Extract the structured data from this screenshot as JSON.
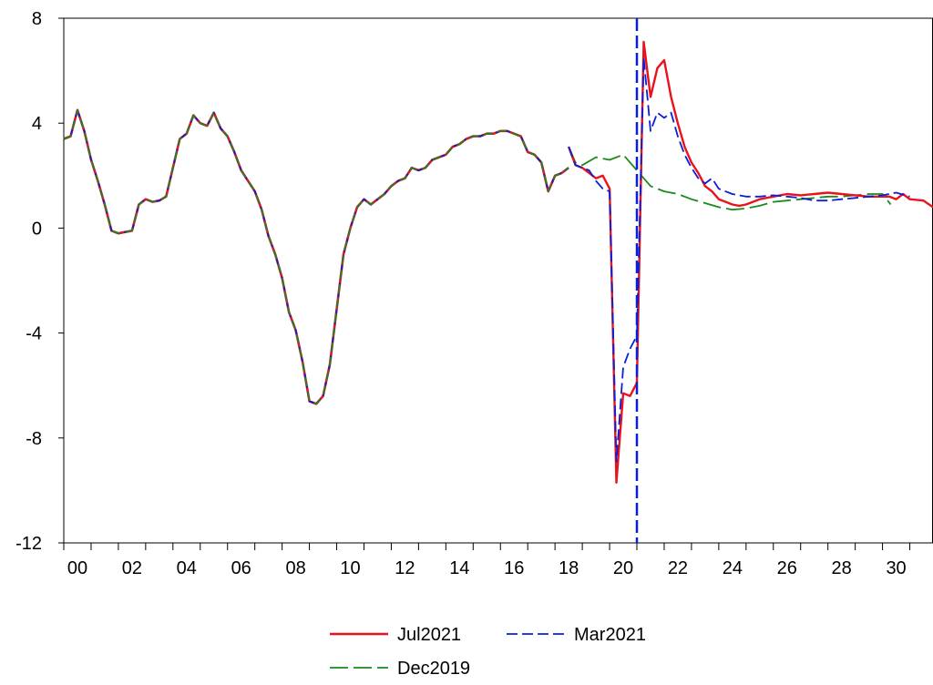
{
  "chart_data": {
    "type": "line",
    "title": "",
    "xlabel": "",
    "ylabel": "",
    "xlim": [
      2000,
      2031.85
    ],
    "ylim": [
      -12,
      8
    ],
    "y_ticks": [
      8,
      4,
      0,
      -4,
      -8,
      -12
    ],
    "x_tick_labels": [
      "00",
      "02",
      "04",
      "06",
      "08",
      "10",
      "12",
      "14",
      "16",
      "18",
      "20",
      "22",
      "24",
      "26",
      "28",
      "30"
    ],
    "x_tick_years": [
      2000,
      2002,
      2004,
      2006,
      2008,
      2010,
      2012,
      2014,
      2016,
      2018,
      2020,
      2022,
      2024,
      2026,
      2028,
      2030
    ],
    "vertical_marker_x": 2021.0,
    "legend_position": "bottom-center",
    "grid": false,
    "common_history": {
      "x": [
        2000.0,
        2000.25,
        2000.5,
        2000.75,
        2001.0,
        2001.25,
        2001.5,
        2001.75,
        2002.0,
        2002.25,
        2002.5,
        2002.75,
        2003.0,
        2003.25,
        2003.5,
        2003.75,
        2004.0,
        2004.25,
        2004.5,
        2004.75,
        2005.0,
        2005.25,
        2005.5,
        2005.75,
        2006.0,
        2006.25,
        2006.5,
        2006.75,
        2007.0,
        2007.25,
        2007.5,
        2007.75,
        2008.0,
        2008.25,
        2008.5,
        2008.75,
        2009.0,
        2009.25,
        2009.5,
        2009.75,
        2010.0,
        2010.25,
        2010.5,
        2010.75,
        2011.0,
        2011.25,
        2011.5,
        2011.75,
        2012.0,
        2012.25,
        2012.5,
        2012.75,
        2013.0,
        2013.25,
        2013.5,
        2013.75,
        2014.0,
        2014.25,
        2014.5,
        2014.75,
        2015.0,
        2015.25,
        2015.5,
        2015.75,
        2016.0,
        2016.25,
        2016.5,
        2016.75,
        2017.0,
        2017.25,
        2017.5,
        2017.75,
        2018.0,
        2018.25,
        2018.5
      ],
      "y": [
        3.4,
        3.5,
        4.5,
        3.7,
        2.6,
        1.8,
        0.9,
        -0.1,
        -0.2,
        -0.15,
        -0.1,
        0.9,
        1.1,
        1.0,
        1.05,
        1.2,
        2.3,
        3.4,
        3.6,
        4.3,
        4.0,
        3.9,
        4.4,
        3.8,
        3.5,
        2.9,
        2.2,
        1.8,
        1.4,
        0.7,
        -0.3,
        -1.0,
        -1.9,
        -3.2,
        -3.9,
        -5.1,
        -6.6,
        -6.7,
        -6.4,
        -5.2,
        -3.1,
        -1.0,
        0.0,
        0.8,
        1.1,
        0.9,
        1.1,
        1.3,
        1.6,
        1.8,
        1.9,
        2.3,
        2.2,
        2.3,
        2.6,
        2.7,
        2.8,
        3.1,
        3.2,
        3.4,
        3.5,
        3.5,
        3.6,
        3.6,
        3.7,
        3.7,
        3.6,
        3.5,
        2.9,
        2.8,
        2.5,
        1.4,
        2.0,
        2.1,
        2.3
      ]
    },
    "series": [
      {
        "name": "Jul2021",
        "color": "#e8131c",
        "style": "solid",
        "x": [
          2018.5,
          2018.75,
          2019.0,
          2019.25,
          2019.5,
          2019.75,
          2020.0,
          2020.25,
          2020.5,
          2020.75,
          2021.0,
          2021.25,
          2021.5,
          2021.75,
          2022.0,
          2022.25,
          2022.5,
          2022.75,
          2023.0,
          2023.25,
          2023.5,
          2023.75,
          2024.0,
          2024.25,
          2024.5,
          2024.75,
          2025.0,
          2025.5,
          2026.0,
          2026.5,
          2027.0,
          2027.5,
          2028.0,
          2028.5,
          2029.0,
          2029.5,
          2030.0,
          2030.25,
          2030.5,
          2030.75,
          2031.0,
          2031.5,
          2031.85
        ],
        "y": [
          3.1,
          2.4,
          2.3,
          2.1,
          1.9,
          2.0,
          1.5,
          -9.7,
          -6.3,
          -6.4,
          -5.9,
          7.1,
          5.0,
          6.1,
          6.4,
          5.0,
          4.0,
          3.1,
          2.5,
          2.1,
          1.6,
          1.4,
          1.1,
          1.0,
          0.9,
          0.85,
          0.9,
          1.1,
          1.2,
          1.3,
          1.25,
          1.3,
          1.35,
          1.3,
          1.25,
          1.2,
          1.2,
          1.2,
          1.1,
          1.3,
          1.1,
          1.05,
          0.8
        ]
      },
      {
        "name": "Mar2021",
        "color": "#0a1fd6",
        "style": "dashed",
        "x": [
          2018.5,
          2018.75,
          2019.0,
          2019.25,
          2019.5,
          2019.75,
          2020.0,
          2020.25,
          2020.5,
          2020.75,
          2021.0,
          2021.25,
          2021.5,
          2021.75,
          2022.0,
          2022.25,
          2022.5,
          2022.75,
          2023.0,
          2023.25,
          2023.5,
          2023.75,
          2024.0,
          2024.5,
          2025.0,
          2025.5,
          2026.0,
          2026.5,
          2027.0,
          2027.5,
          2028.0,
          2028.5,
          2029.0,
          2029.5,
          2030.0,
          2030.5,
          2031.0
        ],
        "y": [
          3.1,
          2.4,
          2.3,
          2.2,
          1.8,
          1.5,
          1.4,
          -8.9,
          -5.3,
          -4.6,
          -4.1,
          6.5,
          3.7,
          4.4,
          4.2,
          4.4,
          3.5,
          2.8,
          2.3,
          1.9,
          1.7,
          1.9,
          1.5,
          1.3,
          1.2,
          1.2,
          1.25,
          1.2,
          1.15,
          1.05,
          1.05,
          1.1,
          1.15,
          1.2,
          1.25,
          1.35,
          1.2
        ]
      },
      {
        "name": "Dec2019",
        "color": "#1a8a1a",
        "style": "longdash",
        "x": [
          2018.5,
          2018.75,
          2019.0,
          2019.5,
          2020.0,
          2020.5,
          2021.0,
          2021.5,
          2022.0,
          2022.5,
          2023.0,
          2023.5,
          2024.0,
          2024.5,
          2025.0,
          2025.5,
          2026.0,
          2026.5,
          2027.0,
          2027.5,
          2028.0,
          2028.5,
          2029.0,
          2029.5,
          2030.0,
          2030.3
        ],
        "y": [
          3.1,
          2.5,
          2.4,
          2.7,
          2.6,
          2.8,
          2.2,
          1.6,
          1.4,
          1.3,
          1.1,
          0.95,
          0.8,
          0.7,
          0.75,
          0.85,
          1.0,
          1.05,
          1.1,
          1.15,
          1.2,
          1.2,
          1.25,
          1.3,
          1.3,
          0.9
        ]
      }
    ]
  }
}
